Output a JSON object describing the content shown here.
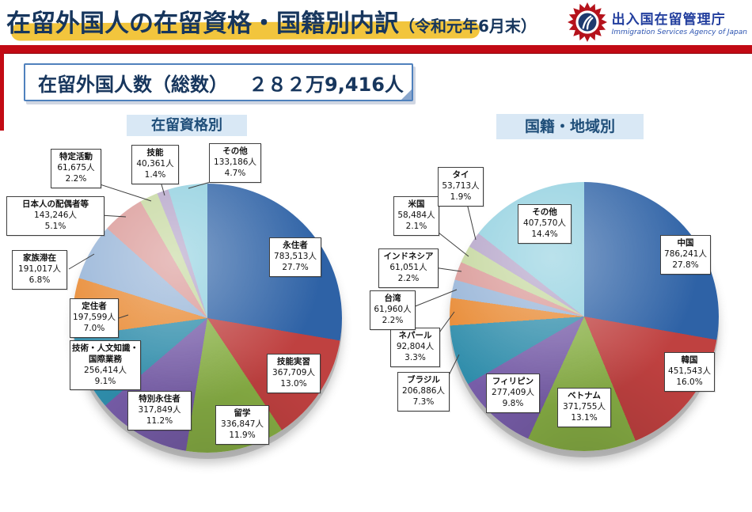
{
  "header": {
    "title": "在留外国人の在留資格・国籍別内訳",
    "title_suffix": "（令和元年6月末）",
    "agency_ja": "出入国在留管理庁",
    "agency_en": "Immigration Services Agency of Japan"
  },
  "summary": {
    "label": "在留外国人数（総数）",
    "value": "２８２万9,416人"
  },
  "colors": {
    "accent_red": "#c20a14",
    "title_navy": "#17365d",
    "chip_bg": "#d9e8f5",
    "chip_text": "#1f4e79",
    "highlight_yellow": "#f2c53d",
    "callout_border_blue": "#4f81bd"
  },
  "chart_data": [
    {
      "type": "pie",
      "title": "在留資格別",
      "unit": "人",
      "direction": "clockwise",
      "start_angle_deg": 0,
      "legend_position": "callout-labels",
      "slices": [
        {
          "name": "永住者",
          "count": 783513,
          "count_label": "783,513人",
          "pct": 27.7,
          "pct_label": "27.7%",
          "color": "#2e62a6"
        },
        {
          "name": "技能実習",
          "count": 367709,
          "count_label": "367,709人",
          "pct": 13.0,
          "pct_label": "13.0%",
          "color": "#bf4140"
        },
        {
          "name": "留学",
          "count": 336847,
          "count_label": "336,847人",
          "pct": 11.9,
          "pct_label": "11.9%",
          "color": "#88af45"
        },
        {
          "name": "特別永住者",
          "count": 317849,
          "count_label": "317,849人",
          "pct": 11.2,
          "pct_label": "11.2%",
          "color": "#775da8"
        },
        {
          "name": "技術・人文知識・国際業務",
          "count": 256414,
          "count_label": "256,414人",
          "pct": 9.1,
          "pct_label": "9.1%",
          "color": "#2f8dab"
        },
        {
          "name": "定住者",
          "count": 197599,
          "count_label": "197,599人",
          "pct": 7.0,
          "pct_label": "7.0%",
          "color": "#e8872e"
        },
        {
          "name": "家族滞在",
          "count": 191017,
          "count_label": "191,017人",
          "pct": 6.8,
          "pct_label": "6.8%",
          "color": "#95b3d7"
        },
        {
          "name": "日本人の配偶者等",
          "count": 143246,
          "count_label": "143,246人",
          "pct": 5.1,
          "pct_label": "5.1%",
          "color": "#d99694"
        },
        {
          "name": "特定活動",
          "count": 61675,
          "count_label": "61,675人",
          "pct": 2.2,
          "pct_label": "2.2%",
          "color": "#c3d69b"
        },
        {
          "name": "技能",
          "count": 40361,
          "count_label": "40,361人",
          "pct": 1.4,
          "pct_label": "1.4%",
          "color": "#b2a1c7"
        },
        {
          "name": "その他",
          "count": 133186,
          "count_label": "133,186人",
          "pct": 4.7,
          "pct_label": "4.7%",
          "color": "#8ecfdf"
        }
      ]
    },
    {
      "type": "pie",
      "title": "国籍・地域別",
      "unit": "人",
      "direction": "clockwise",
      "start_angle_deg": 0,
      "legend_position": "callout-labels",
      "slices": [
        {
          "name": "中国",
          "count": 786241,
          "count_label": "786,241人",
          "pct": 27.8,
          "pct_label": "27.8%",
          "color": "#2e62a6"
        },
        {
          "name": "韓国",
          "count": 451543,
          "count_label": "451,543人",
          "pct": 16.0,
          "pct_label": "16.0%",
          "color": "#bf4140"
        },
        {
          "name": "ベトナム",
          "count": 371755,
          "count_label": "371,755人",
          "pct": 13.1,
          "pct_label": "13.1%",
          "color": "#88af45"
        },
        {
          "name": "フィリピン",
          "count": 277409,
          "count_label": "277,409人",
          "pct": 9.8,
          "pct_label": "9.8%",
          "color": "#775da8"
        },
        {
          "name": "ブラジル",
          "count": 206886,
          "count_label": "206,886人",
          "pct": 7.3,
          "pct_label": "7.3%",
          "color": "#2f8dab"
        },
        {
          "name": "ネパール",
          "count": 92804,
          "count_label": "92,804人",
          "pct": 3.3,
          "pct_label": "3.3%",
          "color": "#e8872e"
        },
        {
          "name": "台湾",
          "count": 61960,
          "count_label": "61,960人",
          "pct": 2.2,
          "pct_label": "2.2%",
          "color": "#95b3d7"
        },
        {
          "name": "インドネシア",
          "count": 61051,
          "count_label": "61,051人",
          "pct": 2.2,
          "pct_label": "2.2%",
          "color": "#d99694"
        },
        {
          "name": "米国",
          "count": 58484,
          "count_label": "58,484人",
          "pct": 2.1,
          "pct_label": "2.1%",
          "color": "#c3d69b"
        },
        {
          "name": "タイ",
          "count": 53713,
          "count_label": "53,713人",
          "pct": 1.9,
          "pct_label": "1.9%",
          "color": "#b2a1c7"
        },
        {
          "name": "その他",
          "count": 407570,
          "count_label": "407,570人",
          "pct": 14.4,
          "pct_label": "14.4%",
          "color": "#8ecfdf"
        }
      ]
    }
  ]
}
